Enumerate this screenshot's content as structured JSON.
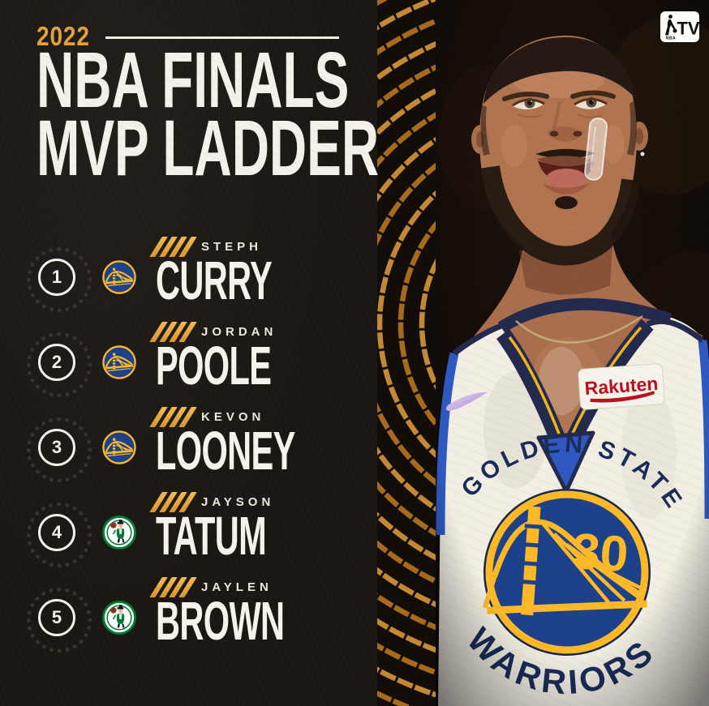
{
  "header": {
    "year": "2022",
    "title_line1": "NBA FINALS",
    "title_line2": "MVP LADDER"
  },
  "ladder": [
    {
      "rank": "1",
      "first": "STEPH",
      "last": "CURRY",
      "team": "warriors",
      "slash_marks": 4
    },
    {
      "rank": "2",
      "first": "JORDAN",
      "last": "POOLE",
      "team": "warriors",
      "slash_marks": 4
    },
    {
      "rank": "3",
      "first": "KEVON",
      "last": "LOONEY",
      "team": "warriors",
      "slash_marks": 4
    },
    {
      "rank": "4",
      "first": "JAYSON",
      "last": "TATUM",
      "team": "celtics",
      "slash_marks": 4
    },
    {
      "rank": "5",
      "first": "JAYLEN",
      "last": "BROWN",
      "team": "celtics",
      "slash_marks": 4
    }
  ],
  "network": {
    "tv_label": "TV",
    "nba_label": "NBA"
  },
  "photo": {
    "jersey_sponsor": "Rakuten",
    "jersey_team_arc_top": "GOLDEN STATE",
    "jersey_team_arc_bottom": "WARRIORS",
    "jersey_number": "30"
  },
  "icons": {
    "nba_logoman": "basketball-player-silhouette",
    "slash_marks": "////",
    "rank_badge": "outlined-circle-with-sunburst",
    "warriors_logo": "blue-circle-gold-bridge",
    "celtics_logo": "green-ring-leprechaun"
  },
  "colors": {
    "accent_gold": "#E2A33C",
    "cream_white": "#F4F1E8",
    "panel_dark": "#1B1713",
    "photo_dark": "#0E0906",
    "warriors_blue": "#1D428A",
    "warriors_gold": "#FDB927",
    "celtics_green": "#007A33",
    "jersey_navy": "#232A4D",
    "jersey_royal": "#2E59C0",
    "rakuten_red": "#B9111E"
  }
}
